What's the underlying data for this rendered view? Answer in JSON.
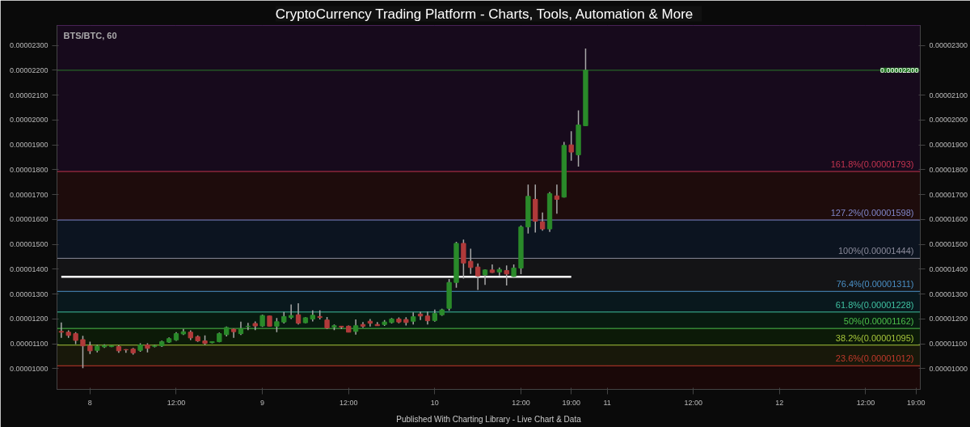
{
  "chart_data": {
    "type": "candlestick",
    "title": "CryptoCurrency Trading Platform  -  Charts, Tools, Automation & More",
    "subtitle": "BTS/BTC, 60",
    "annotations": [
      "Published With Charting Library - Live Chart & Data"
    ],
    "categories": [
      null,
      null,
      null,
      null,
      "8",
      null,
      null,
      null,
      null,
      null,
      null,
      null,
      null,
      null,
      null,
      null,
      "12:00",
      null,
      null,
      null,
      null,
      null,
      null,
      null,
      null,
      null,
      null,
      null,
      "9",
      null,
      null,
      null,
      null,
      null,
      null,
      null,
      null,
      null,
      null,
      null,
      "12:00",
      null,
      null,
      null,
      null,
      null,
      null,
      null,
      null,
      null,
      null,
      null,
      "10",
      null,
      null,
      null,
      null,
      null,
      null,
      null,
      null,
      null,
      null,
      null,
      "12:00",
      null,
      null,
      null,
      null,
      null,
      null,
      "19:00",
      null,
      null,
      null,
      null,
      "11",
      null,
      null,
      null,
      null,
      null,
      null,
      null,
      null,
      null,
      null,
      null,
      "12:00",
      null,
      null,
      null,
      null,
      null,
      null,
      null,
      null,
      null,
      null,
      null,
      "12",
      null,
      null,
      null,
      null,
      null,
      null,
      null,
      null,
      null,
      null,
      null,
      "12:00",
      null,
      null,
      null,
      null,
      null,
      null,
      "19:00"
    ],
    "ohlc": [
      [
        1.15e-05,
        1.186e-05,
        1.124e-05,
        1.147e-05
      ],
      [
        1.147e-05,
        1.154e-05,
        1.124e-05,
        1.134e-05
      ],
      [
        1.141e-05,
        1.147e-05,
        1.099e-05,
        1.114e-05
      ],
      [
        1.117e-05,
        1.132e-05,
        1.002e-05,
        1.092e-05
      ],
      [
        1.092e-05,
        1.109e-05,
        1.059e-05,
        1.072e-05
      ],
      [
        1.074e-05,
        1.097e-05,
        1.066e-05,
        1.091e-05
      ],
      [
        1.088e-05,
        1.098e-05,
        1.084e-05,
        1.093e-05
      ],
      [
        1.089e-05,
        1.094e-05,
        1.087e-05,
        1.092e-05
      ],
      [
        1.089e-05,
        1.094e-05,
        1.064e-05,
        1.072e-05
      ],
      [
        1.077e-05,
        1.079e-05,
        1.064e-05,
        1.076e-05
      ],
      [
        1.079e-05,
        1.084e-05,
        1.057e-05,
        1.064e-05
      ],
      [
        1.074e-05,
        1.102e-05,
        1.068e-05,
        1.096e-05
      ],
      [
        1.096e-05,
        1.102e-05,
        1.066e-05,
        1.082e-05
      ],
      [
        1.09e-05,
        1.096e-05,
        1.086e-05,
        1.092e-05
      ],
      [
        1.092e-05,
        1.113e-05,
        1.088e-05,
        1.109e-05
      ],
      [
        1.107e-05,
        1.126e-05,
        1.104e-05,
        1.121e-05
      ],
      [
        1.116e-05,
        1.147e-05,
        1.112e-05,
        1.141e-05
      ],
      [
        1.14e-05,
        1.16e-05,
        1.136e-05,
        1.149e-05
      ],
      [
        1.147e-05,
        1.154e-05,
        1.115e-05,
        1.124e-05
      ],
      [
        1.129e-05,
        1.134e-05,
        1.108e-05,
        1.112e-05
      ],
      [
        1.112e-05,
        1.134e-05,
        1.096e-05,
        1.102e-05
      ],
      [
        1.105e-05,
        1.11e-05,
        1.102e-05,
        1.109e-05
      ],
      [
        1.109e-05,
        1.145e-05,
        1.106e-05,
        1.141e-05
      ],
      [
        1.137e-05,
        1.17e-05,
        1.13e-05,
        1.166e-05
      ],
      [
        1.159e-05,
        1.162e-05,
        1.124e-05,
        1.149e-05
      ],
      [
        1.141e-05,
        1.189e-05,
        1.136e-05,
        1.162e-05
      ],
      [
        1.17e-05,
        1.184e-05,
        1.155e-05,
        1.171e-05
      ],
      [
        1.182e-05,
        1.19e-05,
        1.155e-05,
        1.172e-05
      ],
      [
        1.172e-05,
        1.218e-05,
        1.168e-05,
        1.214e-05
      ],
      [
        1.212e-05,
        1.214e-05,
        1.17e-05,
        1.171e-05
      ],
      [
        1.171e-05,
        1.204e-05,
        1.147e-05,
        1.189e-05
      ],
      [
        1.188e-05,
        1.228e-05,
        1.182e-05,
        1.21e-05
      ],
      [
        1.206e-05,
        1.258e-05,
        1.2e-05,
        1.214e-05
      ],
      [
        1.217e-05,
        1.263e-05,
        1.178e-05,
        1.183e-05
      ],
      [
        1.185e-05,
        1.207e-05,
        1.183e-05,
        1.205e-05
      ],
      [
        1.2e-05,
        1.235e-05,
        1.19e-05,
        1.215e-05
      ],
      [
        1.21e-05,
        1.235e-05,
        1.198e-05,
        1.206e-05
      ],
      [
        1.196e-05,
        1.208e-05,
        1.16e-05,
        1.164e-05
      ],
      [
        1.168e-05,
        1.178e-05,
        1.155e-05,
        1.173e-05
      ],
      [
        1.171e-05,
        1.172e-05,
        1.16e-05,
        1.168e-05
      ],
      [
        1.171e-05,
        1.174e-05,
        1.146e-05,
        1.147e-05
      ],
      [
        1.15e-05,
        1.198e-05,
        1.137e-05,
        1.173e-05
      ],
      [
        1.178e-05,
        1.188e-05,
        1.165e-05,
        1.171e-05
      ],
      [
        1.191e-05,
        1.2e-05,
        1.17e-05,
        1.183e-05
      ],
      [
        1.178e-05,
        1.188e-05,
        1.172e-05,
        1.173e-05
      ],
      [
        1.178e-05,
        1.196e-05,
        1.172e-05,
        1.188e-05
      ],
      [
        1.186e-05,
        1.204e-05,
        1.182e-05,
        1.2e-05
      ],
      [
        1.2e-05,
        1.206e-05,
        1.183e-05,
        1.188e-05
      ],
      [
        1.198e-05,
        1.207e-05,
        1.174e-05,
        1.186e-05
      ],
      [
        1.191e-05,
        1.227e-05,
        1.178e-05,
        1.209e-05
      ],
      [
        1.22e-05,
        1.229e-05,
        1.196e-05,
        1.212e-05
      ],
      [
        1.212e-05,
        1.23e-05,
        1.178e-05,
        1.193e-05
      ],
      [
        1.194e-05,
        1.238e-05,
        1.189e-05,
        1.222e-05
      ],
      [
        1.217e-05,
        1.241e-05,
        1.213e-05,
        1.237e-05
      ],
      [
        1.243e-05,
        1.361e-05,
        1.233e-05,
        1.347e-05
      ],
      [
        1.347e-05,
        1.51e-05,
        1.326e-05,
        1.504e-05
      ],
      [
        1.504e-05,
        1.519e-05,
        1.362e-05,
        1.425e-05
      ],
      [
        1.432e-05,
        1.483e-05,
        1.381e-05,
        1.407e-05
      ],
      [
        1.409e-05,
        1.423e-05,
        1.317e-05,
        1.373e-05
      ],
      [
        1.377e-05,
        1.4e-05,
        1.337e-05,
        1.397e-05
      ],
      [
        1.397e-05,
        1.419e-05,
        1.385e-05,
        1.387e-05
      ],
      [
        1.389e-05,
        1.407e-05,
        1.375e-05,
        1.399e-05
      ],
      [
        1.395e-05,
        1.415e-05,
        1.335e-05,
        1.381e-05
      ],
      [
        1.371e-05,
        1.419e-05,
        1.366e-05,
        1.405e-05
      ],
      [
        1.405e-05,
        1.576e-05,
        1.38e-05,
        1.57e-05
      ],
      [
        1.57e-05,
        1.74e-05,
        1.544e-05,
        1.693e-05
      ],
      [
        1.681e-05,
        1.74e-05,
        1.548e-05,
        1.593e-05
      ],
      [
        1.591e-05,
        1.628e-05,
        1.555e-05,
        1.562e-05
      ],
      [
        1.562e-05,
        1.71e-05,
        1.55e-05,
        1.704e-05
      ],
      [
        1.695e-05,
        1.74e-05,
        1.623e-05,
        1.681e-05
      ],
      [
        1.69e-05,
        1.912e-05,
        1.688e-05,
        1.898e-05
      ],
      [
        1.9e-05,
        1.955e-05,
        1.836e-05,
        1.871e-05
      ],
      [
        1.86e-05,
        2.039e-05,
        1.813e-05,
        1.98e-05
      ],
      [
        1.977e-05,
        2.287e-05,
        1.975e-05,
        2.2e-05
      ],
      null,
      null,
      null,
      null,
      null,
      null,
      null,
      null,
      null,
      null,
      null,
      null,
      null,
      null,
      null,
      null,
      null,
      null,
      null,
      null,
      null,
      null,
      null,
      null,
      null,
      null,
      null,
      null,
      null,
      null,
      null,
      null,
      null,
      null,
      null,
      null,
      null,
      null,
      null,
      null,
      null,
      null,
      null,
      null,
      null,
      null
    ],
    "colors": [
      "#b03a3a",
      "#b03a3a",
      "#b03a3a",
      "#b03a3a",
      "#b03a3a",
      "#2a8a2a",
      "#2a8a2a",
      "#2a8a2a",
      "#b03a3a",
      "#b03a3a",
      "#b03a3a",
      "#2a8a2a",
      "#b03a3a",
      "#2a8a2a",
      "#2a8a2a",
      "#2a8a2a",
      "#2a8a2a",
      "#2a8a2a",
      "#b03a3a",
      "#b03a3a",
      "#b03a3a",
      "#2a8a2a",
      "#2a8a2a",
      "#2a8a2a",
      "#b03a3a",
      "#2a8a2a",
      "#2a8a2a",
      "#b03a3a",
      "#2a8a2a",
      "#b03a3a",
      "#2a8a2a",
      "#2a8a2a",
      "#2a8a2a",
      "#b03a3a",
      "#2a8a2a",
      "#2a8a2a",
      "#b03a3a",
      "#b03a3a",
      "#2a8a2a",
      "#b03a3a",
      "#b03a3a",
      "#2a8a2a",
      "#b03a3a",
      "#b03a3a",
      "#b03a3a",
      "#2a8a2a",
      "#2a8a2a",
      "#b03a3a",
      "#b03a3a",
      "#2a8a2a",
      "#b03a3a",
      "#b03a3a",
      "#2a8a2a",
      "#2a8a2a",
      "#2a8a2a",
      "#2a8a2a",
      "#b03a3a",
      "#b03a3a",
      "#b03a3a",
      "#2a8a2a",
      "#b03a3a",
      "#2a8a2a",
      "#b03a3a",
      "#2a8a2a",
      "#2a8a2a",
      "#2a8a2a",
      "#b03a3a",
      "#b03a3a",
      "#2a8a2a",
      "#b03a3a",
      "#2a8a2a",
      "#b03a3a",
      "#2a8a2a",
      "#2a8a2a",
      null,
      null,
      null,
      null,
      null,
      null,
      null,
      null,
      null,
      null,
      null,
      null,
      null,
      null,
      null,
      null,
      null,
      null,
      null,
      null,
      null,
      null,
      null,
      null,
      null,
      null,
      null,
      null,
      null,
      null,
      null,
      null,
      null,
      null,
      null,
      null,
      null,
      null,
      null,
      null,
      null,
      null,
      null,
      null,
      null,
      null
    ],
    "series": [
      {
        "type": "line",
        "color": "#ffffff",
        "values": [
          1.37e-05,
          1.37e-05,
          1.37e-05,
          1.37e-05,
          1.37e-05,
          1.37e-05,
          1.37e-05,
          1.37e-05,
          1.37e-05,
          1.37e-05,
          1.37e-05,
          1.37e-05,
          1.37e-05,
          1.37e-05,
          1.37e-05,
          1.37e-05,
          1.37e-05,
          1.37e-05,
          1.37e-05,
          1.37e-05,
          1.37e-05,
          1.37e-05,
          1.37e-05,
          1.37e-05,
          1.37e-05,
          1.37e-05,
          1.37e-05,
          1.37e-05,
          1.37e-05,
          1.37e-05,
          1.37e-05,
          1.37e-05,
          1.37e-05,
          1.37e-05,
          1.37e-05,
          1.37e-05,
          1.37e-05,
          1.37e-05,
          1.37e-05,
          1.37e-05,
          1.37e-05,
          1.37e-05,
          1.37e-05,
          1.37e-05,
          1.37e-05,
          1.37e-05,
          1.37e-05,
          1.37e-05,
          1.37e-05,
          1.37e-05,
          1.37e-05,
          1.37e-05,
          1.37e-05,
          1.37e-05,
          1.37e-05,
          1.37e-05,
          1.37e-05,
          1.37e-05,
          1.37e-05,
          1.37e-05,
          1.37e-05,
          1.37e-05,
          1.37e-05,
          1.37e-05,
          1.37e-05,
          1.37e-05,
          1.37e-05,
          1.37e-05,
          1.37e-05,
          1.37e-05,
          1.37e-05,
          1.37e-05,
          null,
          null,
          null,
          null,
          null,
          null,
          null,
          null,
          null,
          null,
          null,
          null,
          null,
          null,
          null,
          null,
          null,
          null,
          null,
          null,
          null,
          null,
          null,
          null,
          null,
          null,
          null,
          null,
          null,
          null,
          null,
          null,
          null,
          null,
          null,
          null,
          null,
          null,
          null,
          null,
          null,
          null,
          null,
          null,
          null,
          null,
          null,
          null
        ]
      }
    ],
    "ylim": [
      9.17e-06,
      2.38e-05
    ],
    "yticks": [
      {
        "value": 1e-05,
        "label": "0.00001000"
      },
      {
        "value": 1.1e-05,
        "label": "0.00001100"
      },
      {
        "value": 1.2e-05,
        "label": "0.00001200"
      },
      {
        "value": 1.3e-05,
        "label": "0.00001300"
      },
      {
        "value": 1.4e-05,
        "label": "0.00001400"
      },
      {
        "value": 1.5e-05,
        "label": "0.00001500"
      },
      {
        "value": 1.6e-05,
        "label": "0.00001600"
      },
      {
        "value": 1.7e-05,
        "label": "0.00001700"
      },
      {
        "value": 1.8e-05,
        "label": "0.00001800"
      },
      {
        "value": 1.9e-05,
        "label": "0.00001900"
      },
      {
        "value": 2e-05,
        "label": "0.00002000"
      },
      {
        "value": 2.1e-05,
        "label": "0.00002100"
      },
      {
        "value": 2.2e-05,
        "label": "0.00002200"
      },
      {
        "value": 2.3e-05,
        "label": "0.00002300"
      }
    ],
    "y2lim": [
      9.17e-06,
      2.38e-05
    ],
    "y2ticks": [
      {
        "value": 1e-05,
        "label": "0.00001000"
      },
      {
        "value": 1.1e-05,
        "label": "0.00001100"
      },
      {
        "value": 1.2e-05,
        "label": "0.00001200"
      },
      {
        "value": 1.3e-05,
        "label": "0.00001300"
      },
      {
        "value": 1.4e-05,
        "label": "0.00001400"
      },
      {
        "value": 1.5e-05,
        "label": "0.00001500"
      },
      {
        "value": 1.6e-05,
        "label": "0.00001600"
      },
      {
        "value": 1.7e-05,
        "label": "0.00001700"
      },
      {
        "value": 1.8e-05,
        "label": "0.00001800"
      },
      {
        "value": 1.9e-05,
        "label": "0.00001900"
      },
      {
        "value": 2e-05,
        "label": "0.00002000"
      },
      {
        "value": 2.1e-05,
        "label": "0.00002100"
      },
      {
        "value": 2.3e-05,
        "label": "0.00002300"
      }
    ],
    "ref_lines": [
      {
        "axis": "y",
        "value": 1.793e-05,
        "label": "161.8%(0.00001793)",
        "color": "#c2344f"
      },
      {
        "axis": "y",
        "value": 1.598e-05,
        "label": "127.2%(0.00001598)",
        "color": "#7f86c9"
      },
      {
        "axis": "y",
        "value": 1.444e-05,
        "label": "100%(0.00001444)",
        "color": "#8a8a9a"
      },
      {
        "axis": "y",
        "value": 1.311e-05,
        "label": "76.4%(0.00001311)",
        "color": "#4a8fc4"
      },
      {
        "axis": "y",
        "value": 1.228e-05,
        "label": "61.8%(0.00001228)",
        "color": "#3fc0a0"
      },
      {
        "axis": "y",
        "value": 1.162e-05,
        "label": "50%(0.00001162)",
        "color": "#4cc04a"
      },
      {
        "axis": "y",
        "value": 1.095e-05,
        "label": "38.2%(0.00001095)",
        "color": "#a5c43a"
      },
      {
        "axis": "y",
        "value": 1.012e-05,
        "label": "23.6%(0.00001012)",
        "color": "#c0392b"
      },
      {
        "axis": "y2",
        "value": 2.2e-05,
        "label": "0.00002200",
        "color": "#2a7a2a"
      }
    ],
    "bands": [
      {
        "axis": "y",
        "from": 1.793e-05,
        "to": 2.38e-05,
        "color": "#170a1c"
      },
      {
        "axis": "y",
        "from": 1.598e-05,
        "to": 1.793e-05,
        "color": "#1e0c0c"
      },
      {
        "axis": "y",
        "from": 1.444e-05,
        "to": 1.598e-05,
        "color": "#0c1420"
      },
      {
        "axis": "y",
        "from": 1.311e-05,
        "to": 1.444e-05,
        "color": "#141416"
      },
      {
        "axis": "y",
        "from": 1.228e-05,
        "to": 1.311e-05,
        "color": "#09181d"
      },
      {
        "axis": "y",
        "from": 1.162e-05,
        "to": 1.228e-05,
        "color": "#081a10"
      },
      {
        "axis": "y",
        "from": 1.095e-05,
        "to": 1.162e-05,
        "color": "#0c1a08"
      },
      {
        "axis": "y",
        "from": 1.012e-05,
        "to": 1.095e-05,
        "color": "#18180a"
      },
      {
        "axis": "y",
        "from": 9.17e-06,
        "to": 1.012e-05,
        "color": "#1a0808"
      }
    ],
    "grid": true
  }
}
